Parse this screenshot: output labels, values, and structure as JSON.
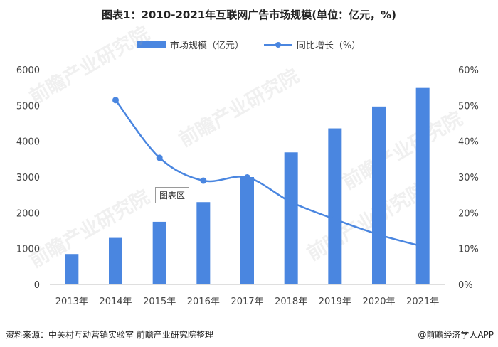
{
  "title": "图表1：2010-2021年互联网广告市场规模(单位：亿元，%)",
  "legend": {
    "bar_label": "市场规模（亿元）",
    "line_label": "同比增长（%）"
  },
  "plot_label": "图表区",
  "footer": {
    "source": "资料来源：中关村互动营销实验室 前瞻产业研究院整理",
    "brand": "@前瞻经济学人APP"
  },
  "watermark": "前瞻产业研究院",
  "colors": {
    "bar": "#4a86e0",
    "line": "#4a86e0",
    "axis": "#bfbfbf"
  },
  "chart_data": {
    "type": "bar",
    "categories": [
      "2013年",
      "2014年",
      "2015年",
      "2016年",
      "2017年",
      "2018年",
      "2019年",
      "2020年",
      "2021年"
    ],
    "series": [
      {
        "name": "市场规模（亿元）",
        "type": "bar",
        "axis": "left",
        "values": [
          850,
          1300,
          1750,
          2300,
          3000,
          3690,
          4360,
          4970,
          5490
        ]
      },
      {
        "name": "同比增长（%）",
        "type": "line",
        "axis": "right",
        "values": [
          null,
          51.5,
          35.4,
          29.0,
          29.9,
          23.0,
          18.2,
          13.9,
          10.6
        ]
      }
    ],
    "y_left": {
      "ticks": [
        "0",
        "1000",
        "2000",
        "3000",
        "4000",
        "5000",
        "6000"
      ],
      "ylim": [
        0,
        6000
      ]
    },
    "y_right": {
      "ticks": [
        "0%",
        "10%",
        "20%",
        "30%",
        "40%",
        "50%",
        "60%"
      ],
      "ylim": [
        0,
        60
      ]
    },
    "grid": false,
    "legend_position": "top"
  }
}
